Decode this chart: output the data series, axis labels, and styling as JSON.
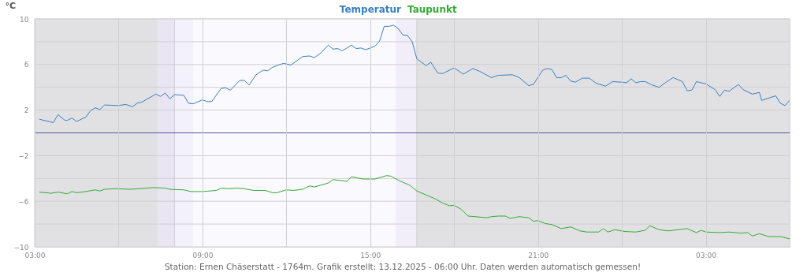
{
  "chart_data": {
    "type": "line",
    "ylabel": "°C",
    "annotations": [
      "Station: Ernen Chäserstatt - 1764m. Grafik erstellt: 13.12.2025 - 06:00 Uhr. Daten werden automatisch gemessen!"
    ],
    "xlim": [
      "2025-12-12T03:00",
      "2025-12-13T06:00"
    ],
    "xticks": [
      {
        "value": "2025-12-12T03:00",
        "label": "03:00"
      },
      {
        "value": "2025-12-12T06:00",
        "label": null
      },
      {
        "value": "2025-12-12T09:00",
        "label": "09:00"
      },
      {
        "value": "2025-12-12T12:00",
        "label": null
      },
      {
        "value": "2025-12-12T15:00",
        "label": "15:00"
      },
      {
        "value": "2025-12-12T18:00",
        "label": null
      },
      {
        "value": "2025-12-12T21:00",
        "label": "21:00"
      },
      {
        "value": "2025-12-13T00:00",
        "label": null
      },
      {
        "value": "2025-12-13T03:00",
        "label": "03:00"
      }
    ],
    "ylim": [
      -10,
      10
    ],
    "yticks": [
      10,
      {
        "value": 8,
        "label": null
      },
      6,
      {
        "value": 4,
        "label": null
      },
      2,
      {
        "value": 0,
        "label": null
      },
      -2,
      {
        "value": -4,
        "label": null
      },
      -6,
      {
        "value": -8,
        "label": null
      },
      -10
    ],
    "grid": true,
    "legend": "top",
    "marker": "none",
    "line_style": "solid",
    "bands": [
      {
        "axis": "x",
        "from": "2025-12-12T03:00",
        "to": "2025-12-12T07:25",
        "color": "#dedee1"
      },
      {
        "axis": "x",
        "from": "2025-12-12T07:25",
        "to": "2025-12-12T08:00",
        "color": "#e7e3f2"
      },
      {
        "axis": "x",
        "from": "2025-12-12T08:00",
        "to": "2025-12-12T08:40",
        "color": "#f2f0fb"
      },
      {
        "axis": "x",
        "from": "2025-12-12T08:40",
        "to": "2025-12-12T15:55",
        "color": "#faf9fd"
      },
      {
        "axis": "x",
        "from": "2025-12-12T15:55",
        "to": "2025-12-12T16:40",
        "color": "#f0ecf9"
      },
      {
        "axis": "x",
        "from": "2025-12-12T16:40",
        "to": "2025-12-13T06:00",
        "color": "#dedee1"
      }
    ],
    "ref_lines": [
      {
        "axis": "x",
        "value": "2025-12-12T08:00",
        "color": "#cfcfd4"
      },
      {
        "axis": "x",
        "value": "2025-12-12T16:40",
        "color": "#cfcfd4"
      },
      {
        "axis": "y",
        "value": 0,
        "color": "#4b5a9a",
        "line_style": "solid"
      }
    ],
    "series": [
      {
        "name": "Temperatur",
        "color": "#3a7fc1",
        "x": [
          "2025-12-12T03:10",
          "2025-12-12T03:40",
          "2025-12-12T03:50",
          "2025-12-12T04:05",
          "2025-12-12T04:10",
          "2025-12-12T04:20",
          "2025-12-12T04:30",
          "2025-12-12T04:50",
          "2025-12-12T05:00",
          "2025-12-12T05:10",
          "2025-12-12T05:20",
          "2025-12-12T05:30",
          "2025-12-12T06:00",
          "2025-12-12T06:15",
          "2025-12-12T06:30",
          "2025-12-12T06:40",
          "2025-12-12T06:50",
          "2025-12-12T07:20",
          "2025-12-12T07:30",
          "2025-12-12T07:40",
          "2025-12-12T07:50",
          "2025-12-12T08:00",
          "2025-12-12T08:20",
          "2025-12-12T08:30",
          "2025-12-12T08:40",
          "2025-12-12T09:00",
          "2025-12-12T09:10",
          "2025-12-12T09:20",
          "2025-12-12T09:40",
          "2025-12-12T09:50",
          "2025-12-12T10:00",
          "2025-12-12T10:20",
          "2025-12-12T10:30",
          "2025-12-12T10:40",
          "2025-12-12T10:55",
          "2025-12-12T11:10",
          "2025-12-12T11:20",
          "2025-12-12T11:30",
          "2025-12-12T11:50",
          "2025-12-12T11:55",
          "2025-12-12T12:10",
          "2025-12-12T12:35",
          "2025-12-12T12:50",
          "2025-12-12T13:00",
          "2025-12-12T13:15",
          "2025-12-12T13:30",
          "2025-12-12T13:40",
          "2025-12-12T13:50",
          "2025-12-12T14:00",
          "2025-12-12T14:20",
          "2025-12-12T14:30",
          "2025-12-12T14:40",
          "2025-12-12T14:50",
          "2025-12-12T15:10",
          "2025-12-12T15:20",
          "2025-12-12T15:30",
          "2025-12-12T15:40",
          "2025-12-12T15:50",
          "2025-12-12T16:00",
          "2025-12-12T16:10",
          "2025-12-12T16:20",
          "2025-12-12T16:30",
          "2025-12-12T16:40",
          "2025-12-12T17:00",
          "2025-12-12T17:10",
          "2025-12-12T17:25",
          "2025-12-12T17:35",
          "2025-12-12T18:00",
          "2025-12-12T18:20",
          "2025-12-12T18:40",
          "2025-12-12T18:55",
          "2025-12-12T19:20",
          "2025-12-12T19:35",
          "2025-12-12T20:05",
          "2025-12-12T20:20",
          "2025-12-12T20:40",
          "2025-12-12T20:50",
          "2025-12-12T21:10",
          "2025-12-12T21:20",
          "2025-12-12T21:30",
          "2025-12-12T21:40",
          "2025-12-12T21:50",
          "2025-12-12T22:00",
          "2025-12-12T22:10",
          "2025-12-12T22:20",
          "2025-12-12T22:35",
          "2025-12-12T22:50",
          "2025-12-12T23:05",
          "2025-12-12T23:25",
          "2025-12-12T23:40",
          "2025-12-13T00:00",
          "2025-12-13T00:10",
          "2025-12-13T00:20",
          "2025-12-13T00:30",
          "2025-12-13T00:40",
          "2025-12-13T00:50",
          "2025-12-13T01:05",
          "2025-12-13T01:20",
          "2025-12-13T01:35",
          "2025-12-13T01:50",
          "2025-12-13T02:10",
          "2025-12-13T02:20",
          "2025-12-13T02:30",
          "2025-12-13T02:40",
          "2025-12-13T03:00",
          "2025-12-13T03:20",
          "2025-12-13T03:30",
          "2025-12-13T03:40",
          "2025-12-13T03:50",
          "2025-12-13T04:10",
          "2025-12-13T04:20",
          "2025-12-13T04:40",
          "2025-12-13T04:55",
          "2025-12-13T05:00",
          "2025-12-13T05:30",
          "2025-12-13T05:40",
          "2025-12-13T05:50",
          "2025-12-13T06:00"
        ],
        "values": [
          1.2,
          0.9,
          1.6,
          1.1,
          1.1,
          1.3,
          1.0,
          1.4,
          1.95,
          2.2,
          2.05,
          2.45,
          2.4,
          2.5,
          2.3,
          2.6,
          2.7,
          3.4,
          3.2,
          3.5,
          3.0,
          3.35,
          3.3,
          2.6,
          2.55,
          2.9,
          2.75,
          2.75,
          3.9,
          3.95,
          3.75,
          4.6,
          4.6,
          4.2,
          5.1,
          5.5,
          5.45,
          5.75,
          6.05,
          6.1,
          5.95,
          6.7,
          6.75,
          6.6,
          7.05,
          7.7,
          7.35,
          7.4,
          7.2,
          7.7,
          7.4,
          7.45,
          7.3,
          7.6,
          8.05,
          9.35,
          9.35,
          9.45,
          9.15,
          8.6,
          8.55,
          8.0,
          6.5,
          5.9,
          6.2,
          5.25,
          5.2,
          5.7,
          5.15,
          5.65,
          5.4,
          4.85,
          5.05,
          5.1,
          4.85,
          4.15,
          4.25,
          5.5,
          5.65,
          5.55,
          4.85,
          4.85,
          5.05,
          4.55,
          4.45,
          4.8,
          4.8,
          4.35,
          4.1,
          4.5,
          4.45,
          4.4,
          4.75,
          4.4,
          4.5,
          4.5,
          4.2,
          4.0,
          4.45,
          4.85,
          4.5,
          3.7,
          3.75,
          4.5,
          4.3,
          3.8,
          3.2,
          3.75,
          3.65,
          4.25,
          3.8,
          3.4,
          3.55,
          2.85,
          3.25,
          2.6,
          2.4,
          2.85
        ]
      },
      {
        "name": "Taupunkt",
        "color": "#33aa33",
        "x": [
          "2025-12-12T03:10",
          "2025-12-12T03:35",
          "2025-12-12T03:50",
          "2025-12-12T04:10",
          "2025-12-12T04:20",
          "2025-12-12T04:30",
          "2025-12-12T04:50",
          "2025-12-12T05:10",
          "2025-12-12T05:20",
          "2025-12-12T05:30",
          "2025-12-12T05:55",
          "2025-12-12T06:25",
          "2025-12-12T06:45",
          "2025-12-12T07:15",
          "2025-12-12T07:40",
          "2025-12-12T07:50",
          "2025-12-12T08:20",
          "2025-12-12T08:35",
          "2025-12-12T09:00",
          "2025-12-12T09:30",
          "2025-12-12T09:40",
          "2025-12-12T09:55",
          "2025-12-12T10:15",
          "2025-12-12T10:30",
          "2025-12-12T10:50",
          "2025-12-12T11:15",
          "2025-12-12T11:30",
          "2025-12-12T11:40",
          "2025-12-12T12:00",
          "2025-12-12T12:15",
          "2025-12-12T12:35",
          "2025-12-12T12:50",
          "2025-12-12T13:00",
          "2025-12-12T13:30",
          "2025-12-12T13:40",
          "2025-12-12T14:10",
          "2025-12-12T14:20",
          "2025-12-12T14:45",
          "2025-12-12T15:10",
          "2025-12-12T15:35",
          "2025-12-12T15:45",
          "2025-12-12T16:00",
          "2025-12-12T16:25",
          "2025-12-12T16:40",
          "2025-12-12T17:00",
          "2025-12-12T17:20",
          "2025-12-12T17:35",
          "2025-12-12T17:50",
          "2025-12-12T18:00",
          "2025-12-12T18:15",
          "2025-12-12T18:30",
          "2025-12-12T18:45",
          "2025-12-12T19:10",
          "2025-12-12T19:20",
          "2025-12-12T19:35",
          "2025-12-12T19:50",
          "2025-12-12T20:00",
          "2025-12-12T20:20",
          "2025-12-12T20:40",
          "2025-12-12T20:50",
          "2025-12-12T21:00",
          "2025-12-12T21:15",
          "2025-12-12T21:30",
          "2025-12-12T21:50",
          "2025-12-12T22:10",
          "2025-12-12T22:30",
          "2025-12-12T22:45",
          "2025-12-12T23:10",
          "2025-12-12T23:20",
          "2025-12-12T23:30",
          "2025-12-12T23:45",
          "2025-12-13T00:05",
          "2025-12-13T00:30",
          "2025-12-13T00:50",
          "2025-12-13T01:00",
          "2025-12-13T01:20",
          "2025-12-13T01:40",
          "2025-12-13T02:00",
          "2025-12-13T02:20",
          "2025-12-13T02:40",
          "2025-12-13T02:50",
          "2025-12-13T03:00",
          "2025-12-13T03:30",
          "2025-12-13T03:50",
          "2025-12-13T04:15",
          "2025-12-13T04:30",
          "2025-12-13T04:40",
          "2025-12-13T04:55",
          "2025-12-13T05:15",
          "2025-12-13T05:40",
          "2025-12-13T06:00"
        ],
        "values": [
          -5.2,
          -5.3,
          -5.2,
          -5.35,
          -5.15,
          -5.25,
          -5.15,
          -5.0,
          -5.1,
          -4.95,
          -4.9,
          -4.95,
          -4.9,
          -4.8,
          -4.85,
          -4.95,
          -5.0,
          -5.15,
          -5.15,
          -5.05,
          -4.85,
          -4.9,
          -4.85,
          -4.9,
          -5.05,
          -5.05,
          -5.25,
          -5.25,
          -5.0,
          -5.05,
          -4.95,
          -4.65,
          -4.75,
          -4.4,
          -4.1,
          -4.25,
          -3.85,
          -4.05,
          -4.05,
          -3.75,
          -3.8,
          -4.15,
          -4.6,
          -5.1,
          -5.45,
          -5.8,
          -6.15,
          -6.4,
          -6.35,
          -6.7,
          -7.3,
          -7.35,
          -7.45,
          -7.35,
          -7.3,
          -7.3,
          -7.5,
          -7.35,
          -7.45,
          -7.75,
          -7.7,
          -7.95,
          -8.05,
          -8.4,
          -8.25,
          -8.6,
          -8.7,
          -8.7,
          -8.4,
          -8.7,
          -8.5,
          -8.65,
          -8.7,
          -8.55,
          -8.15,
          -8.5,
          -8.6,
          -8.5,
          -8.4,
          -8.75,
          -8.55,
          -8.7,
          -8.75,
          -8.7,
          -8.8,
          -8.75,
          -9.05,
          -8.85,
          -9.1,
          -9.1,
          -9.3
        ]
      }
    ]
  }
}
